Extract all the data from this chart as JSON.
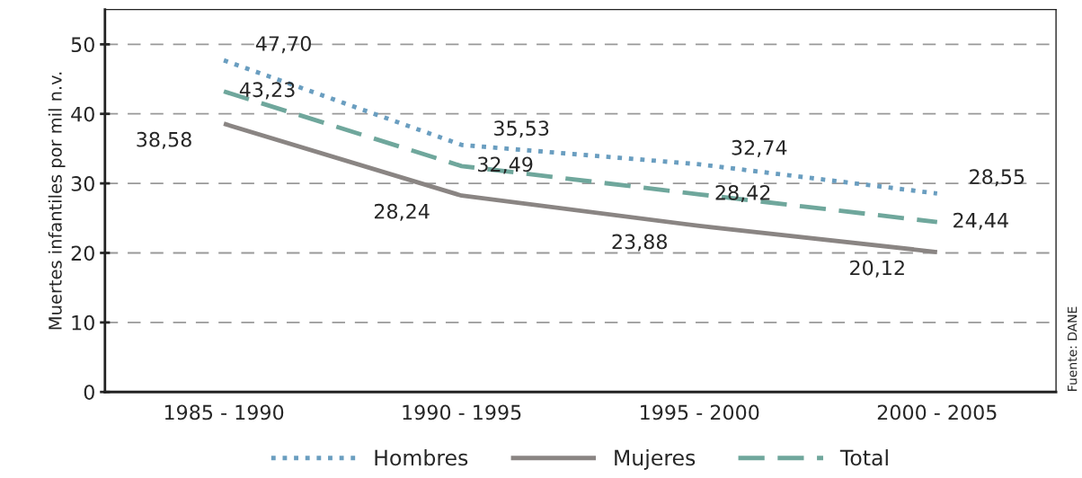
{
  "chart_data": {
    "type": "line",
    "ylabel": "Muertes infantiles por mil n.v.",
    "categories": [
      "1985 - 1990",
      "1990 - 1995",
      "1995 - 2000",
      "2000 - 2005"
    ],
    "series": [
      {
        "name": "Hombres",
        "color": "#6a9ec0",
        "line_style": "dotted",
        "values": [
          47.7,
          35.53,
          32.74,
          28.55
        ],
        "value_labels": [
          "47,70",
          "35,53",
          "32,74",
          "28,55"
        ]
      },
      {
        "name": "Mujeres",
        "color": "#8a8583",
        "line_style": "solid",
        "values": [
          38.58,
          28.24,
          23.88,
          20.12
        ],
        "value_labels": [
          "38,58",
          "28,24",
          "23,88",
          "20,12"
        ]
      },
      {
        "name": "Total",
        "color": "#6fa79c",
        "line_style": "dashed",
        "values": [
          43.23,
          32.49,
          28.42,
          24.44
        ],
        "value_labels": [
          "43,23",
          "32,49",
          "28,42",
          "24,44"
        ]
      }
    ],
    "ylim": [
      0,
      55
    ],
    "yticks": [
      0,
      10,
      20,
      30,
      40,
      50
    ],
    "grid": "y",
    "legend": "bottom",
    "marker": "none",
    "annotations": [
      "Fuente: DANE"
    ]
  }
}
